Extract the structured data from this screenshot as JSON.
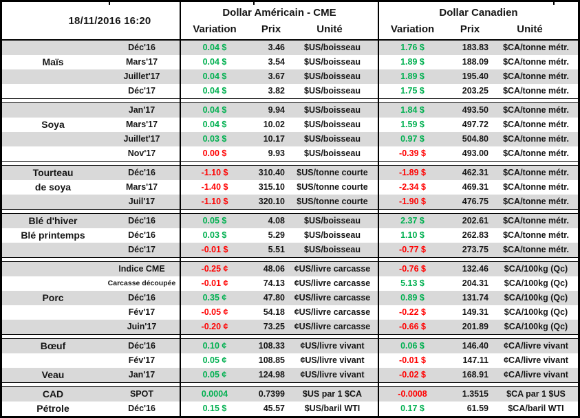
{
  "header": {
    "timestamp": "18/11/2016 16:20",
    "usd_group": "Dollar Américain - CME",
    "cad_group": "Dollar Canadien",
    "columns": {
      "variation": "Variation",
      "prix": "Prix",
      "unite": "Unité"
    }
  },
  "colors": {
    "positive": "#00B050",
    "negative": "#FF0000",
    "stripe": "#D9D9D9"
  },
  "sections": [
    {
      "rows": [
        {
          "label": "",
          "month": "Déc'16",
          "us": {
            "var": "0.04 $",
            "dir": "pos",
            "prix": "3.46",
            "unit": "$US/boisseau"
          },
          "ca": {
            "var": "1.76 $",
            "dir": "pos",
            "prix": "183.83",
            "unit": "$CA/tonne métr."
          }
        },
        {
          "label": "Maïs",
          "month": "Mars'17",
          "us": {
            "var": "0.04 $",
            "dir": "pos",
            "prix": "3.54",
            "unit": "$US/boisseau"
          },
          "ca": {
            "var": "1.89 $",
            "dir": "pos",
            "prix": "188.09",
            "unit": "$CA/tonne métr."
          }
        },
        {
          "label": "",
          "month": "Juillet'17",
          "us": {
            "var": "0.04 $",
            "dir": "pos",
            "prix": "3.67",
            "unit": "$US/boisseau"
          },
          "ca": {
            "var": "1.89 $",
            "dir": "pos",
            "prix": "195.40",
            "unit": "$CA/tonne métr."
          }
        },
        {
          "label": "",
          "month": "Déc'17",
          "us": {
            "var": "0.04 $",
            "dir": "pos",
            "prix": "3.82",
            "unit": "$US/boisseau"
          },
          "ca": {
            "var": "1.75 $",
            "dir": "pos",
            "prix": "203.25",
            "unit": "$CA/tonne métr."
          }
        }
      ]
    },
    {
      "rows": [
        {
          "label": "",
          "month": "Jan'17",
          "us": {
            "var": "0.04 $",
            "dir": "pos",
            "prix": "9.94",
            "unit": "$US/boisseau"
          },
          "ca": {
            "var": "1.84 $",
            "dir": "pos",
            "prix": "493.50",
            "unit": "$CA/tonne métr."
          }
        },
        {
          "label": "Soya",
          "month": "Mars'17",
          "us": {
            "var": "0.04 $",
            "dir": "pos",
            "prix": "10.02",
            "unit": "$US/boisseau"
          },
          "ca": {
            "var": "1.59 $",
            "dir": "pos",
            "prix": "497.72",
            "unit": "$CA/tonne métr."
          }
        },
        {
          "label": "",
          "month": "Juillet'17",
          "us": {
            "var": "0.03 $",
            "dir": "pos",
            "prix": "10.17",
            "unit": "$US/boisseau"
          },
          "ca": {
            "var": "0.97 $",
            "dir": "pos",
            "prix": "504.80",
            "unit": "$CA/tonne métr."
          }
        },
        {
          "label": "",
          "month": "Nov'17",
          "us": {
            "var": "0.00 $",
            "dir": "neg",
            "prix": "9.93",
            "unit": "$US/boisseau"
          },
          "ca": {
            "var": "-0.39 $",
            "dir": "neg",
            "prix": "493.00",
            "unit": "$CA/tonne métr."
          }
        }
      ]
    },
    {
      "rows": [
        {
          "label": "Tourteau",
          "month": "Déc'16",
          "us": {
            "var": "-1.10 $",
            "dir": "neg",
            "prix": "310.40",
            "unit": "$US/tonne courte"
          },
          "ca": {
            "var": "-1.89 $",
            "dir": "neg",
            "prix": "462.31",
            "unit": "$CA/tonne métr."
          }
        },
        {
          "label": "de soya",
          "month": "Mars'17",
          "us": {
            "var": "-1.40 $",
            "dir": "neg",
            "prix": "315.10",
            "unit": "$US/tonne courte"
          },
          "ca": {
            "var": "-2.34 $",
            "dir": "neg",
            "prix": "469.31",
            "unit": "$CA/tonne métr."
          }
        },
        {
          "label": "",
          "month": "Juil'17",
          "us": {
            "var": "-1.10 $",
            "dir": "neg",
            "prix": "320.10",
            "unit": "$US/tonne courte"
          },
          "ca": {
            "var": "-1.90 $",
            "dir": "neg",
            "prix": "476.75",
            "unit": "$CA/tonne métr."
          }
        }
      ]
    },
    {
      "rows": [
        {
          "label": "Blé d'hiver",
          "month": "Déc'16",
          "us": {
            "var": "0.05 $",
            "dir": "pos",
            "prix": "4.08",
            "unit": "$US/boisseau"
          },
          "ca": {
            "var": "2.37 $",
            "dir": "pos",
            "prix": "202.61",
            "unit": "$CA/tonne métr."
          }
        },
        {
          "label": "Blé printemps",
          "month": "Déc'16",
          "us": {
            "var": "0.03 $",
            "dir": "pos",
            "prix": "5.29",
            "unit": "$US/boisseau"
          },
          "ca": {
            "var": "1.10 $",
            "dir": "pos",
            "prix": "262.83",
            "unit": "$CA/tonne métr."
          }
        },
        {
          "label": "",
          "month": "Déc'17",
          "us": {
            "var": "-0.01 $",
            "dir": "neg",
            "prix": "5.51",
            "unit": "$US/boisseau"
          },
          "ca": {
            "var": "-0.77 $",
            "dir": "neg",
            "prix": "273.75",
            "unit": "$CA/tonne métr."
          }
        }
      ]
    },
    {
      "rows": [
        {
          "label": "",
          "month": "Indice CME",
          "us": {
            "var": "-0.25 ¢",
            "dir": "neg",
            "prix": "48.06",
            "unit": "¢US/livre carcasse"
          },
          "ca": {
            "var": "-0.76 $",
            "dir": "neg",
            "prix": "132.46",
            "unit": "$CA/100kg (Qc)"
          }
        },
        {
          "label": "",
          "month": "Carcasse découpée",
          "small": true,
          "us": {
            "var": "-0.01 ¢",
            "dir": "neg",
            "prix": "74.13",
            "unit": "¢US/livre carcasse"
          },
          "ca": {
            "var": "5.13 $",
            "dir": "pos",
            "prix": "204.31",
            "unit": "$CA/100kg (Qc)"
          }
        },
        {
          "label": "Porc",
          "month": "Déc'16",
          "us": {
            "var": "0.35 ¢",
            "dir": "pos",
            "prix": "47.80",
            "unit": "¢US/livre carcasse"
          },
          "ca": {
            "var": "0.89 $",
            "dir": "pos",
            "prix": "131.74",
            "unit": "$CA/100kg (Qc)"
          }
        },
        {
          "label": "",
          "month": "Fév'17",
          "us": {
            "var": "-0.05 ¢",
            "dir": "neg",
            "prix": "54.18",
            "unit": "¢US/livre carcasse"
          },
          "ca": {
            "var": "-0.22 $",
            "dir": "neg",
            "prix": "149.31",
            "unit": "$CA/100kg (Qc)"
          }
        },
        {
          "label": "",
          "month": "Juin'17",
          "us": {
            "var": "-0.20 ¢",
            "dir": "neg",
            "prix": "73.25",
            "unit": "¢US/livre carcasse"
          },
          "ca": {
            "var": "-0.66 $",
            "dir": "neg",
            "prix": "201.89",
            "unit": "$CA/100kg (Qc)"
          }
        }
      ]
    },
    {
      "rows": [
        {
          "label": "Bœuf",
          "month": "Déc'16",
          "us": {
            "var": "0.10 ¢",
            "dir": "pos",
            "prix": "108.33",
            "unit": "¢US/livre vivant"
          },
          "ca": {
            "var": "0.06 $",
            "dir": "pos",
            "prix": "146.40",
            "unit": "¢CA/livre vivant"
          }
        },
        {
          "label": "",
          "month": "Fév'17",
          "us": {
            "var": "0.05 ¢",
            "dir": "pos",
            "prix": "108.85",
            "unit": "¢US/livre vivant"
          },
          "ca": {
            "var": "-0.01 $",
            "dir": "neg",
            "prix": "147.11",
            "unit": "¢CA/livre vivant"
          }
        },
        {
          "label": "Veau",
          "month": "Jan'17",
          "us": {
            "var": "0.05 ¢",
            "dir": "pos",
            "prix": "124.98",
            "unit": "¢US/livre vivant"
          },
          "ca": {
            "var": "-0.02 $",
            "dir": "neg",
            "prix": "168.91",
            "unit": "¢CA/livre vivant"
          }
        }
      ]
    },
    {
      "rows": [
        {
          "label": "CAD",
          "month": "SPOT",
          "us": {
            "var": "0.0004",
            "dir": "pos",
            "prix": "0.7399",
            "unit": "$US par 1 $CA"
          },
          "ca": {
            "var": "-0.0008",
            "dir": "neg",
            "prix": "1.3515",
            "unit": "$CA par 1 $US"
          }
        },
        {
          "label": "Pétrole",
          "month": "Déc'16",
          "us": {
            "var": "0.15 $",
            "dir": "pos",
            "prix": "45.57",
            "unit": "$US/baril WTI"
          },
          "ca": {
            "var": "0.17 $",
            "dir": "pos",
            "prix": "61.59",
            "unit": "$CA/baril WTI"
          }
        }
      ]
    }
  ]
}
